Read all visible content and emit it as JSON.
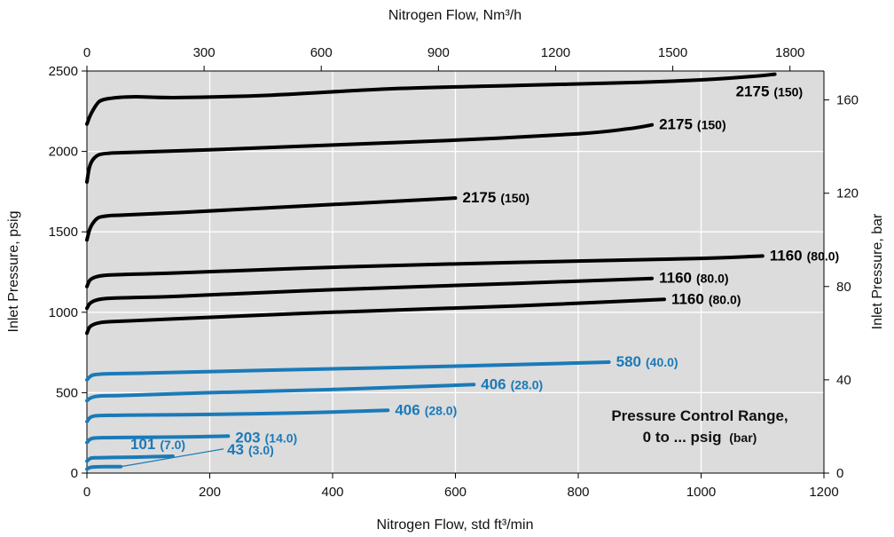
{
  "chart_data": {
    "type": "line",
    "title": "",
    "xlabel": "Nitrogen Flow, std ft³/min",
    "xlabel_top": "Nitrogen Flow, Nm³/h",
    "ylabel": "Inlet Pressure, psig",
    "ylabel_right": "Inlet Pressure, bar",
    "xlim": [
      0,
      1200
    ],
    "ylim": [
      0,
      2500
    ],
    "x2lim": [
      0,
      1887
    ],
    "y2lim": [
      0,
      172.4
    ],
    "grid": true,
    "x_ticks": [
      0,
      200,
      400,
      600,
      800,
      1000,
      1200
    ],
    "x_tick_labels": [
      "0",
      "200",
      "400",
      "600",
      "800",
      "1000",
      "1200"
    ],
    "x2_ticks": [
      0,
      300,
      600,
      900,
      1200,
      1500,
      1800
    ],
    "x2_tick_labels": [
      "0",
      "300",
      "600",
      "900",
      "1200",
      "1500",
      "1800"
    ],
    "y_ticks": [
      0,
      500,
      1000,
      1500,
      2000,
      2500
    ],
    "y_tick_labels": [
      "0",
      "500",
      "1000",
      "1500",
      "2000",
      "2500"
    ],
    "y2_ticks": [
      0,
      40,
      80,
      120,
      160
    ],
    "y2_tick_labels": [
      "0",
      "40",
      "80",
      "120",
      "160"
    ],
    "annotation": [
      "Pressure Control Range,",
      "0 to ... psig",
      "(bar)"
    ],
    "colors": {
      "black_series": "#000000",
      "blue_series": "#1a7ab8",
      "plot_background": "#dcdcdc",
      "grid": "#ffffff"
    },
    "series": [
      {
        "label_main": "2175",
        "label_sub": "(150)",
        "color": "#000000",
        "x": [
          0,
          5,
          12,
          20,
          30,
          50,
          80,
          150,
          300,
          500,
          700,
          900,
          1000,
          1080,
          1120
        ],
        "y": [
          2170,
          2220,
          2270,
          2310,
          2325,
          2335,
          2340,
          2335,
          2350,
          2390,
          2410,
          2430,
          2445,
          2465,
          2480
        ]
      },
      {
        "label_main": "2175",
        "label_sub": "(150)",
        "color": "#000000",
        "x": [
          0,
          4,
          10,
          20,
          40,
          80,
          200,
          400,
          600,
          800,
          880,
          920
        ],
        "y": [
          1810,
          1900,
          1950,
          1980,
          1990,
          1995,
          2010,
          2040,
          2070,
          2110,
          2140,
          2165
        ]
      },
      {
        "label_main": "2175",
        "label_sub": "(150)",
        "color": "#000000",
        "x": [
          0,
          5,
          12,
          20,
          35,
          60,
          150,
          300,
          450,
          550,
          600
        ],
        "y": [
          1450,
          1520,
          1565,
          1590,
          1600,
          1605,
          1620,
          1650,
          1680,
          1700,
          1710
        ]
      },
      {
        "label_main": "1160",
        "label_sub": "(80.0)",
        "color": "#000000",
        "x": [
          0,
          5,
          15,
          30,
          60,
          150,
          400,
          700,
          1000,
          1100
        ],
        "y": [
          1160,
          1200,
          1220,
          1230,
          1235,
          1245,
          1280,
          1310,
          1335,
          1350
        ]
      },
      {
        "label_main": "1160",
        "label_sub": "(80.0)",
        "color": "#000000",
        "x": [
          0,
          5,
          15,
          30,
          60,
          150,
          400,
          700,
          920
        ],
        "y": [
          1025,
          1055,
          1075,
          1085,
          1090,
          1100,
          1140,
          1180,
          1210
        ]
      },
      {
        "label_main": "1160",
        "label_sub": "(80.0)",
        "color": "#000000",
        "x": [
          0,
          5,
          15,
          30,
          60,
          150,
          400,
          700,
          940
        ],
        "y": [
          870,
          910,
          930,
          940,
          945,
          960,
          1000,
          1040,
          1080
        ]
      },
      {
        "label_main": "580",
        "label_sub": "(40.0)",
        "color": "#1a7ab8",
        "x": [
          0,
          5,
          10,
          20,
          40,
          100,
          300,
          600,
          850
        ],
        "y": [
          580,
          600,
          610,
          615,
          618,
          622,
          640,
          665,
          690
        ]
      },
      {
        "label_main": "406",
        "label_sub": "(28.0)",
        "color": "#1a7ab8",
        "x": [
          0,
          5,
          12,
          25,
          60,
          200,
          400,
          630
        ],
        "y": [
          450,
          465,
          475,
          480,
          483,
          500,
          520,
          550
        ]
      },
      {
        "label_main": "406",
        "label_sub": "(28.0)",
        "color": "#1a7ab8",
        "x": [
          0,
          5,
          12,
          25,
          60,
          200,
          350,
          490
        ],
        "y": [
          320,
          345,
          355,
          358,
          360,
          365,
          375,
          390
        ]
      },
      {
        "label_main": "203",
        "label_sub": "(14.0)",
        "color": "#1a7ab8",
        "x": [
          0,
          5,
          12,
          25,
          80,
          160,
          230
        ],
        "y": [
          190,
          210,
          218,
          220,
          222,
          225,
          230
        ]
      },
      {
        "label_main": "101",
        "label_sub": "(7.0)",
        "color": "#1a7ab8",
        "x": [
          0,
          5,
          12,
          40,
          90,
          140
        ],
        "y": [
          75,
          90,
          95,
          97,
          100,
          105
        ]
      },
      {
        "label_main": "43",
        "label_sub": "(3.0)",
        "color": "#1a7ab8",
        "x": [
          0,
          5,
          12,
          30,
          55
        ],
        "y": [
          25,
          35,
          38,
          40,
          40
        ]
      }
    ]
  }
}
